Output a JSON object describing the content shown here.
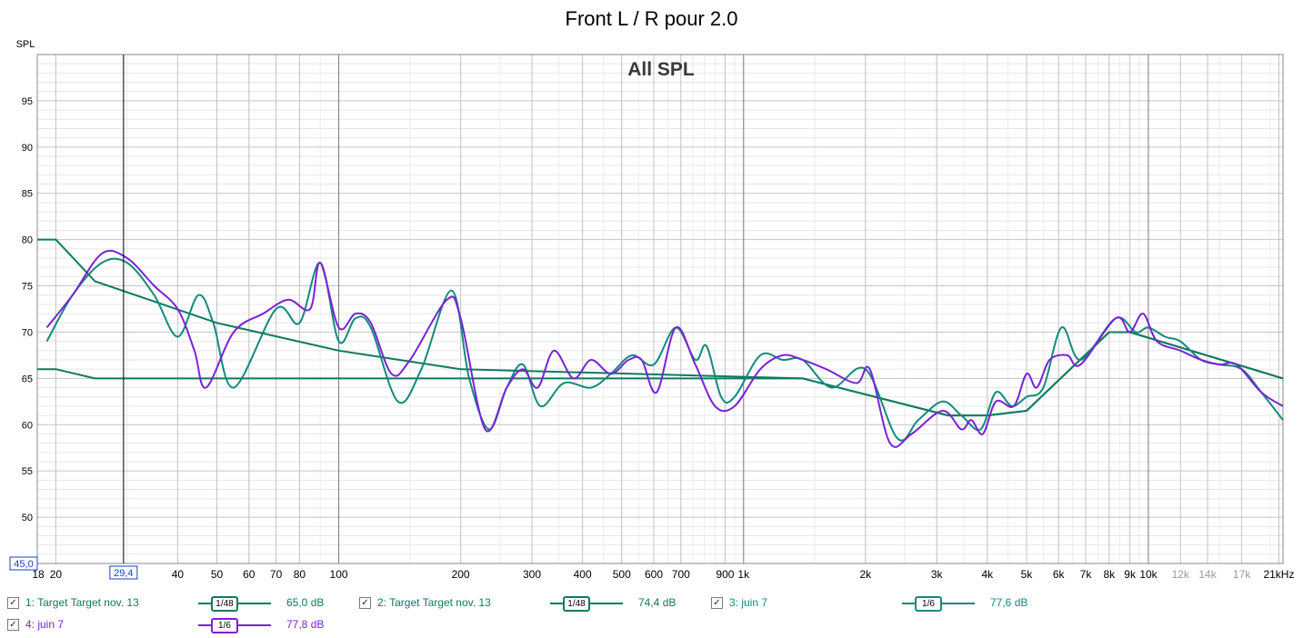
{
  "title": "Front L / R pour 2.0",
  "chart_data": {
    "type": "line",
    "title": "All SPL",
    "ylabel": "SPL",
    "xunit": "kHz",
    "xscale": "log",
    "xlim": [
      18,
      21500
    ],
    "ylim": [
      45,
      100
    ],
    "grid": true,
    "cursor": {
      "x": 29.4,
      "label": "29,4"
    },
    "ymin_label": "45,0",
    "yticks": [
      50,
      55,
      60,
      65,
      70,
      75,
      80,
      85,
      90,
      95
    ],
    "xticks": [
      {
        "v": 18,
        "l": "18"
      },
      {
        "v": 20,
        "l": "20"
      },
      {
        "v": 40,
        "l": "40"
      },
      {
        "v": 50,
        "l": "50"
      },
      {
        "v": 60,
        "l": "60"
      },
      {
        "v": 70,
        "l": "70"
      },
      {
        "v": 80,
        "l": "80"
      },
      {
        "v": 100,
        "l": "100"
      },
      {
        "v": 200,
        "l": "200"
      },
      {
        "v": 300,
        "l": "300"
      },
      {
        "v": 400,
        "l": "400"
      },
      {
        "v": 500,
        "l": "500"
      },
      {
        "v": 600,
        "l": "600"
      },
      {
        "v": 700,
        "l": "700"
      },
      {
        "v": 900,
        "l": "900"
      },
      {
        "v": 1000,
        "l": "1k"
      },
      {
        "v": 2000,
        "l": "2k"
      },
      {
        "v": 3000,
        "l": "3k"
      },
      {
        "v": 4000,
        "l": "4k"
      },
      {
        "v": 5000,
        "l": "5k"
      },
      {
        "v": 6000,
        "l": "6k"
      },
      {
        "v": 7000,
        "l": "7k"
      },
      {
        "v": 8000,
        "l": "8k"
      },
      {
        "v": 9000,
        "l": "9k"
      },
      {
        "v": 10000,
        "l": "10k"
      },
      {
        "v": 12000,
        "l": "12k",
        "muted": true
      },
      {
        "v": 14000,
        "l": "14k",
        "muted": true
      },
      {
        "v": 17000,
        "l": "17k",
        "muted": true
      },
      {
        "v": 21000,
        "l": "21kHz"
      }
    ],
    "series": [
      {
        "name": "1: Target Target nov. 13",
        "color": "#0d7a5f",
        "smoothing": "1/48",
        "value_label": "65,0 dB",
        "points": [
          [
            18,
            66
          ],
          [
            20,
            66
          ],
          [
            25,
            65
          ],
          [
            1400,
            65
          ],
          [
            3200,
            61
          ],
          [
            4000,
            61
          ],
          [
            5000,
            61.5
          ],
          [
            8000,
            70
          ],
          [
            9000,
            70
          ],
          [
            21500,
            65
          ]
        ]
      },
      {
        "name": "2: Target Target nov. 13",
        "color": "#0d7a5f",
        "smoothing": "1/48",
        "value_label": "74,4 dB",
        "points": [
          [
            18,
            80
          ],
          [
            20,
            80
          ],
          [
            25,
            75.5
          ],
          [
            50,
            71
          ],
          [
            100,
            68
          ],
          [
            200,
            66
          ],
          [
            1400,
            65
          ],
          [
            3200,
            61
          ],
          [
            4000,
            61
          ],
          [
            5000,
            61.5
          ],
          [
            8000,
            70
          ],
          [
            9000,
            70
          ],
          [
            21500,
            65
          ]
        ]
      },
      {
        "name": "3: juin 7",
        "color": "#128a7d",
        "smoothing": "1/6",
        "value_label": "77,6 dB",
        "points": [
          [
            19,
            69
          ],
          [
            22,
            74
          ],
          [
            26,
            77.5
          ],
          [
            30,
            77.5
          ],
          [
            35,
            74
          ],
          [
            40,
            69.5
          ],
          [
            45,
            74
          ],
          [
            49,
            71
          ],
          [
            55,
            64
          ],
          [
            70,
            72.5
          ],
          [
            80,
            71
          ],
          [
            90,
            77.5
          ],
          [
            100,
            69
          ],
          [
            110,
            71.5
          ],
          [
            120,
            70.5
          ],
          [
            140,
            62.5
          ],
          [
            160,
            66
          ],
          [
            190,
            74.5
          ],
          [
            210,
            65
          ],
          [
            235,
            59.5
          ],
          [
            260,
            64
          ],
          [
            285,
            66.5
          ],
          [
            315,
            62
          ],
          [
            360,
            64.5
          ],
          [
            420,
            64
          ],
          [
            470,
            65.5
          ],
          [
            530,
            67.5
          ],
          [
            600,
            66.5
          ],
          [
            680,
            70.5
          ],
          [
            760,
            67
          ],
          [
            810,
            68.5
          ],
          [
            880,
            63
          ],
          [
            950,
            63
          ],
          [
            1100,
            67.5
          ],
          [
            1250,
            67
          ],
          [
            1400,
            67
          ],
          [
            1650,
            64
          ],
          [
            2000,
            66
          ],
          [
            2400,
            58.5
          ],
          [
            2700,
            60.5
          ],
          [
            3100,
            62.5
          ],
          [
            3450,
            61
          ],
          [
            3850,
            59.5
          ],
          [
            4200,
            63.5
          ],
          [
            4600,
            62
          ],
          [
            5000,
            63
          ],
          [
            5500,
            64
          ],
          [
            6100,
            70.5
          ],
          [
            6800,
            67
          ],
          [
            8300,
            71.5
          ],
          [
            9300,
            70
          ],
          [
            10000,
            70.5
          ],
          [
            11000,
            69.5
          ],
          [
            12000,
            69
          ],
          [
            13500,
            67
          ],
          [
            15000,
            66.5
          ],
          [
            17000,
            66
          ],
          [
            19000,
            63.5
          ],
          [
            21500,
            60.5
          ]
        ]
      },
      {
        "name": "4: juin 7",
        "color": "#7a22d6",
        "smoothing": "1/6",
        "value_label": "77,8 dB",
        "points": [
          [
            19,
            70.5
          ],
          [
            22,
            74
          ],
          [
            26,
            78.5
          ],
          [
            30,
            78
          ],
          [
            35,
            75
          ],
          [
            40,
            72.5
          ],
          [
            44,
            68
          ],
          [
            47,
            64
          ],
          [
            55,
            70
          ],
          [
            65,
            72
          ],
          [
            75,
            73.5
          ],
          [
            85,
            72.5
          ],
          [
            90,
            77.5
          ],
          [
            100,
            70.5
          ],
          [
            110,
            72
          ],
          [
            120,
            71
          ],
          [
            135,
            65.5
          ],
          [
            150,
            67
          ],
          [
            185,
            73.5
          ],
          [
            200,
            71.5
          ],
          [
            230,
            59.5
          ],
          [
            260,
            64
          ],
          [
            285,
            66
          ],
          [
            310,
            64
          ],
          [
            340,
            68
          ],
          [
            380,
            65
          ],
          [
            420,
            67
          ],
          [
            470,
            65.5
          ],
          [
            520,
            67
          ],
          [
            560,
            67
          ],
          [
            610,
            63.5
          ],
          [
            680,
            70.5
          ],
          [
            760,
            66.5
          ],
          [
            850,
            62
          ],
          [
            950,
            62
          ],
          [
            1100,
            66
          ],
          [
            1250,
            67.5
          ],
          [
            1400,
            67
          ],
          [
            1600,
            66
          ],
          [
            1900,
            64.5
          ],
          [
            2050,
            66
          ],
          [
            2300,
            58
          ],
          [
            2600,
            59
          ],
          [
            3100,
            61.5
          ],
          [
            3450,
            59.5
          ],
          [
            3650,
            60.5
          ],
          [
            3900,
            59
          ],
          [
            4200,
            62.5
          ],
          [
            4650,
            62
          ],
          [
            5000,
            65.5
          ],
          [
            5300,
            64
          ],
          [
            5700,
            67
          ],
          [
            6300,
            67.5
          ],
          [
            6800,
            66.5
          ],
          [
            8300,
            71.5
          ],
          [
            9000,
            70
          ],
          [
            9700,
            72
          ],
          [
            10500,
            69
          ],
          [
            12000,
            68
          ],
          [
            13500,
            67
          ],
          [
            15000,
            66.5
          ],
          [
            16500,
            66.5
          ],
          [
            19000,
            63.5
          ],
          [
            21500,
            62
          ]
        ]
      }
    ]
  }
}
